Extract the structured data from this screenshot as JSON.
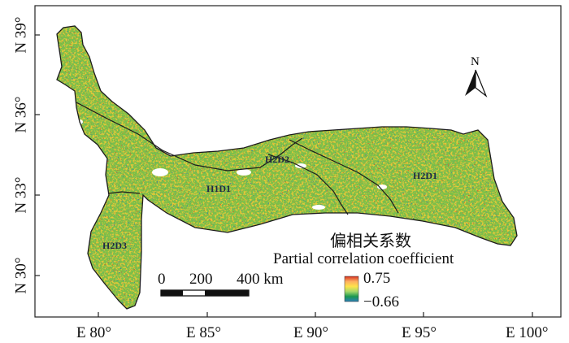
{
  "map": {
    "zones": [
      "H2D2",
      "H1D1",
      "H2D1",
      "H2D3"
    ],
    "x_ticks": [
      "E 80°",
      "E 85°",
      "E 90°",
      "E 95°",
      "E 100°"
    ],
    "y_ticks": [
      "N 39°",
      "N 36°",
      "N 33°",
      "N 30°"
    ],
    "north_label": "N",
    "scale_bar": {
      "labels": [
        "0",
        "200",
        "400 km"
      ]
    },
    "legend": {
      "title_cn": "偏相关系数",
      "title_en": "Partial correlation coefficient",
      "max": "0.75",
      "min": "−0.66",
      "colors": [
        "#d7301f",
        "#fdae61",
        "#ffe34a",
        "#a6d96a",
        "#1a9850",
        "#2c7fb8"
      ]
    }
  }
}
